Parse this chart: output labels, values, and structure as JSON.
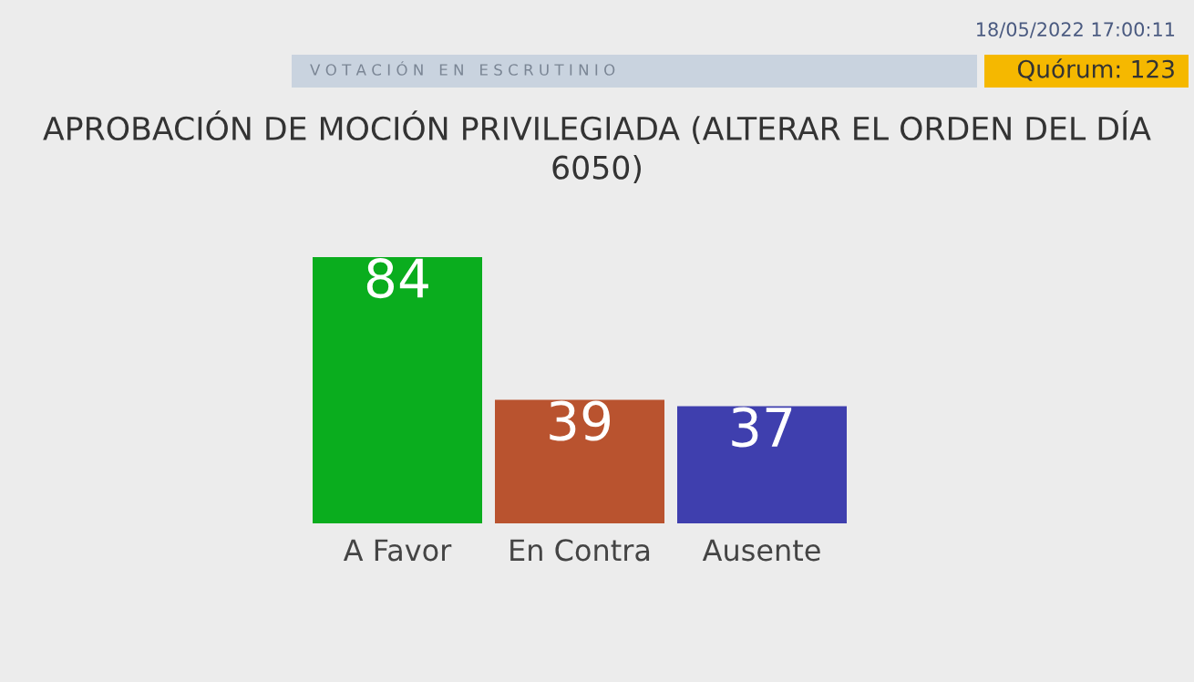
{
  "chart_data": {
    "type": "bar",
    "title": "APROBACIÓN DE MOCIÓN PRIVILEGIADA (ALTERAR EL ORDEN DEL DÍA 6050)",
    "categories": [
      "A Favor",
      "En Contra",
      "Ausente"
    ],
    "values": [
      84,
      39,
      37
    ],
    "colors": [
      "#0aad1e",
      "#b9532f",
      "#3f3fae"
    ],
    "data_labels": true,
    "annotations": [
      "V O T A C I Ó N   E N   E S C R U T I N I O",
      "18/05/2022 17:00:11",
      "Quórum: 123"
    ]
  }
}
